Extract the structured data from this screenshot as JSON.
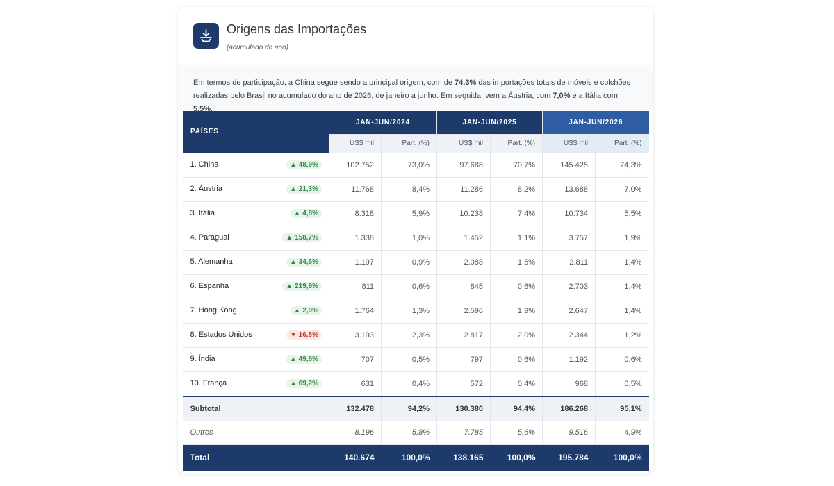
{
  "header": {
    "title": "Origens das Importações",
    "subtitle": "(acumulado do ano)"
  },
  "intro": {
    "parts": [
      "Em termos de participação, a China segue sendo a principal origem, com de ",
      "74,3%",
      " das importações totais de móveis e colchões realizadas pelo Brasil no acumulado do ano de 2026, de janeiro a junho. Em seguida, vem a Áustria, com ",
      "7,0%",
      " e a Itália com ",
      "5,5%",
      "."
    ]
  },
  "table": {
    "country_header": "PAÍSES",
    "columns": [
      {
        "period": "JAN-JUN/2024",
        "units": [
          "US$ mil",
          "Part. (%)"
        ]
      },
      {
        "period": "JAN-JUN/2025",
        "units": [
          "US$ mil",
          "Part. (%)"
        ]
      },
      {
        "period": "JAN-JUN/2026",
        "units": [
          "US$ mil",
          "Part. (%)"
        ]
      }
    ],
    "rows": [
      {
        "name": "1. China",
        "change": "48,9%",
        "trend": "up",
        "values": [
          "102.752",
          "73,0%",
          "97.688",
          "70,7%",
          "145.425",
          "74,3%"
        ]
      },
      {
        "name": "2. Áustria",
        "change": "21,3%",
        "trend": "up",
        "values": [
          "11.768",
          "8,4%",
          "11.286",
          "8,2%",
          "13.688",
          "7,0%"
        ]
      },
      {
        "name": "3. Itália",
        "change": "4,8%",
        "trend": "up",
        "values": [
          "8.318",
          "5,9%",
          "10.238",
          "7,4%",
          "10.734",
          "5,5%"
        ]
      },
      {
        "name": "4. Paraguai",
        "change": "158,7%",
        "trend": "up",
        "values": [
          "1.338",
          "1,0%",
          "1.452",
          "1,1%",
          "3.757",
          "1,9%"
        ]
      },
      {
        "name": "5. Alemanha",
        "change": "34,6%",
        "trend": "up",
        "values": [
          "1.197",
          "0,9%",
          "2.088",
          "1,5%",
          "2.811",
          "1,4%"
        ]
      },
      {
        "name": "6. Espanha",
        "change": "219,9%",
        "trend": "up",
        "values": [
          "811",
          "0,6%",
          "845",
          "0,6%",
          "2.703",
          "1,4%"
        ]
      },
      {
        "name": "7. Hong Kong",
        "change": "2,0%",
        "trend": "up",
        "values": [
          "1.764",
          "1,3%",
          "2.596",
          "1,9%",
          "2.647",
          "1,4%"
        ]
      },
      {
        "name": "8. Estados Unidos",
        "change": "16,8%",
        "trend": "down",
        "values": [
          "3.193",
          "2,3%",
          "2.817",
          "2,0%",
          "2.344",
          "1,2%"
        ]
      },
      {
        "name": "9. Índia",
        "change": "49,6%",
        "trend": "up",
        "values": [
          "707",
          "0,5%",
          "797",
          "0,6%",
          "1.192",
          "0,6%"
        ]
      },
      {
        "name": "10. França",
        "change": "69,2%",
        "trend": "up",
        "values": [
          "631",
          "0,4%",
          "572",
          "0,4%",
          "968",
          "0,5%"
        ]
      }
    ],
    "subtotal": {
      "label": "Subtotal",
      "values": [
        "132.478",
        "94,2%",
        "130.380",
        "94,4%",
        "186.268",
        "95,1%"
      ]
    },
    "others": {
      "label": "Outros",
      "values": [
        "8.196",
        "5,8%",
        "7.785",
        "5,6%",
        "9.516",
        "4,9%"
      ]
    },
    "total": {
      "label": "Total",
      "values": [
        "140.674",
        "100,0%",
        "138.165",
        "100,0%",
        "195.784",
        "100,0%"
      ]
    }
  }
}
